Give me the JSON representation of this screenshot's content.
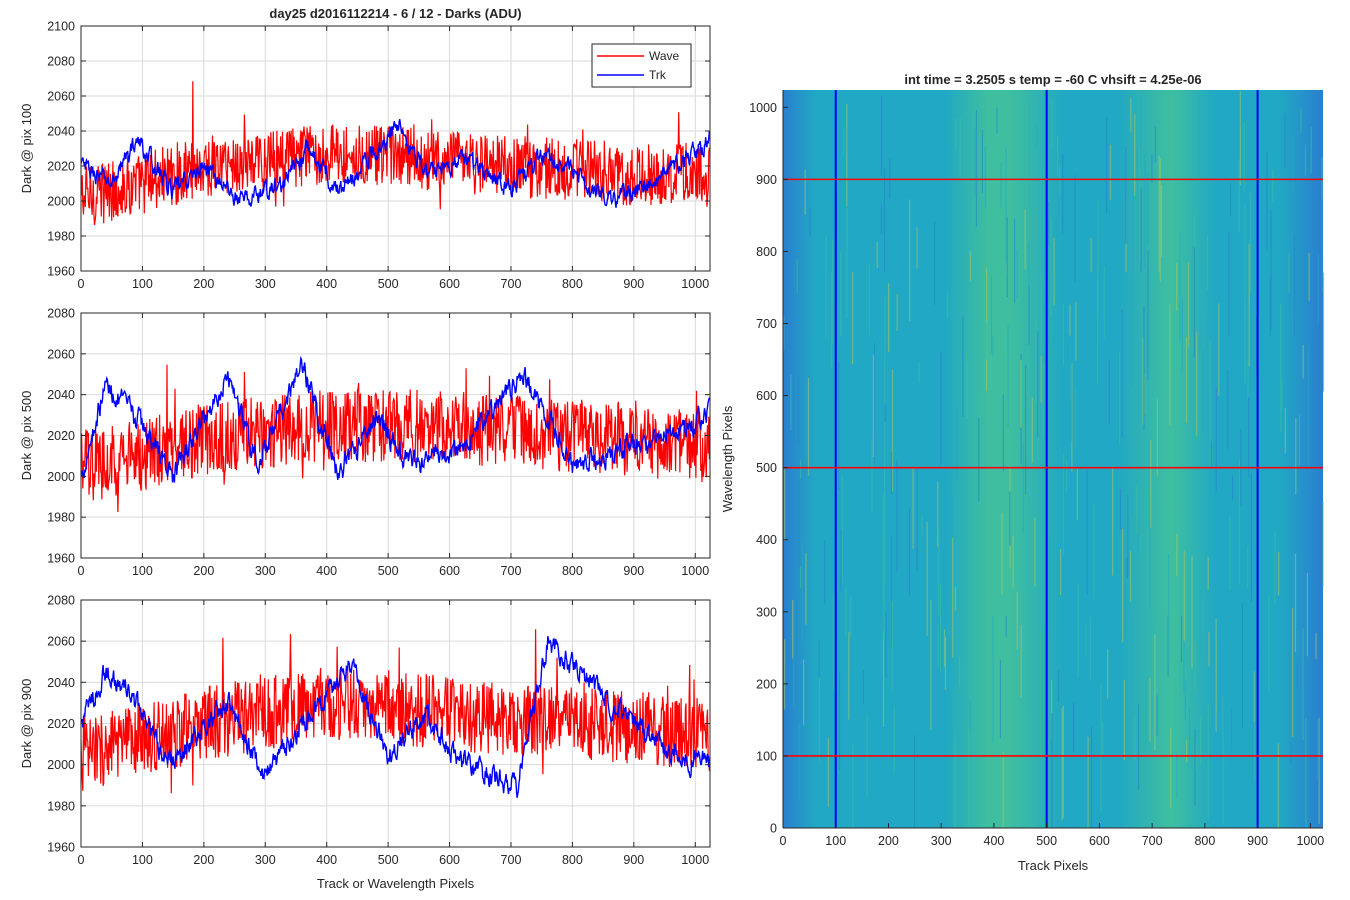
{
  "figure": {
    "colors": {
      "wave": "#ff0000",
      "trk": "#0000ff",
      "grid": "#d9d9d9",
      "axis": "#262626"
    }
  },
  "chart_data": [
    {
      "type": "line",
      "title": "day25 d2016112214 - 6 / 12 - Darks (ADU)",
      "xlabel": "",
      "ylabel": "Dark @ pix 100",
      "xlim": [
        0,
        1024
      ],
      "ylim": [
        1960,
        2100
      ],
      "xticks": [
        0,
        100,
        200,
        300,
        400,
        500,
        600,
        700,
        800,
        900,
        1000
      ],
      "yticks": [
        1960,
        1980,
        2000,
        2020,
        2040,
        2060,
        2080,
        2100
      ],
      "grid": true,
      "legend": {
        "placement": "top-right",
        "entries": [
          "Wave",
          "Trk"
        ]
      },
      "series": [
        {
          "name": "Wave",
          "color": "#ff0000",
          "x": [
            0,
            100,
            200,
            300,
            400,
            500,
            600,
            700,
            800,
            900,
            1000,
            1024
          ],
          "values": [
            2002,
            2010,
            2020,
            2022,
            2028,
            2025,
            2022,
            2020,
            2018,
            2015,
            2016,
            2014
          ]
        },
        {
          "name": "Trk",
          "color": "#0000ff",
          "x": [
            0,
            50,
            90,
            150,
            200,
            260,
            330,
            370,
            420,
            520,
            560,
            620,
            700,
            760,
            860,
            940,
            1024
          ],
          "values": [
            2020,
            2010,
            2035,
            2005,
            2020,
            2000,
            2010,
            2030,
            2005,
            2045,
            2015,
            2025,
            2008,
            2028,
            2000,
            2012,
            2035
          ]
        }
      ]
    },
    {
      "type": "line",
      "title": "",
      "xlabel": "",
      "ylabel": "Dark @ pix 500",
      "xlim": [
        0,
        1024
      ],
      "ylim": [
        1960,
        2080
      ],
      "xticks": [
        0,
        100,
        200,
        300,
        400,
        500,
        600,
        700,
        800,
        900,
        1000
      ],
      "yticks": [
        1960,
        1980,
        2000,
        2020,
        2040,
        2060,
        2080
      ],
      "grid": true,
      "series": [
        {
          "name": "Wave",
          "color": "#ff0000",
          "x": [
            0,
            100,
            200,
            300,
            400,
            500,
            600,
            700,
            800,
            900,
            1000,
            1024
          ],
          "values": [
            2005,
            2010,
            2018,
            2022,
            2025,
            2025,
            2024,
            2022,
            2020,
            2018,
            2015,
            2012
          ]
        },
        {
          "name": "Trk",
          "color": "#0000ff",
          "x": [
            0,
            40,
            100,
            150,
            240,
            290,
            360,
            420,
            480,
            540,
            620,
            720,
            800,
            900,
            1024
          ],
          "values": [
            2000,
            2045,
            2025,
            2000,
            2050,
            2005,
            2055,
            2000,
            2030,
            2005,
            2015,
            2050,
            2005,
            2015,
            2030
          ]
        }
      ]
    },
    {
      "type": "line",
      "title": "",
      "xlabel": "Track or Wavelength Pixels",
      "ylabel": "Dark @ pix 900",
      "xlim": [
        0,
        1024
      ],
      "ylim": [
        1960,
        2080
      ],
      "xticks": [
        0,
        100,
        200,
        300,
        400,
        500,
        600,
        700,
        800,
        900,
        1000
      ],
      "yticks": [
        1960,
        1980,
        2000,
        2020,
        2040,
        2060,
        2080
      ],
      "grid": true,
      "series": [
        {
          "name": "Wave",
          "color": "#ff0000",
          "x": [
            0,
            100,
            200,
            300,
            400,
            500,
            600,
            700,
            800,
            900,
            1000,
            1024
          ],
          "values": [
            2005,
            2012,
            2020,
            2025,
            2030,
            2028,
            2025,
            2022,
            2020,
            2018,
            2015,
            2012
          ]
        },
        {
          "name": "Trk",
          "color": "#0000ff",
          "x": [
            0,
            40,
            90,
            140,
            240,
            300,
            440,
            500,
            560,
            620,
            710,
            760,
            860,
            960,
            1024
          ],
          "values": [
            2020,
            2045,
            2030,
            2000,
            2030,
            1995,
            2050,
            2005,
            2025,
            2000,
            1990,
            2060,
            2030,
            2005,
            2000
          ]
        }
      ]
    },
    {
      "type": "heatmap",
      "title": "int time = 3.2505 s    temp = -60 C    vhsift = 4.25e-06",
      "xlabel": "Track Pixels",
      "ylabel": "Wavelength Pixels",
      "xlim": [
        0,
        1024
      ],
      "ylim": [
        0,
        1024
      ],
      "xticks": [
        0,
        100,
        200,
        300,
        400,
        500,
        600,
        700,
        800,
        900,
        1000
      ],
      "yticks": [
        0,
        100,
        200,
        300,
        400,
        500,
        600,
        700,
        800,
        900,
        1000
      ],
      "grid": false,
      "colormap": [
        "#2a7fd0",
        "#21a8c4",
        "#3fbf9f",
        "#a8c860"
      ],
      "vertical_lines": {
        "x": [
          100,
          500,
          900
        ],
        "color": "#0000ff"
      },
      "horizontal_lines": {
        "y": [
          100,
          500,
          900
        ],
        "color": "#ff0000"
      }
    }
  ]
}
